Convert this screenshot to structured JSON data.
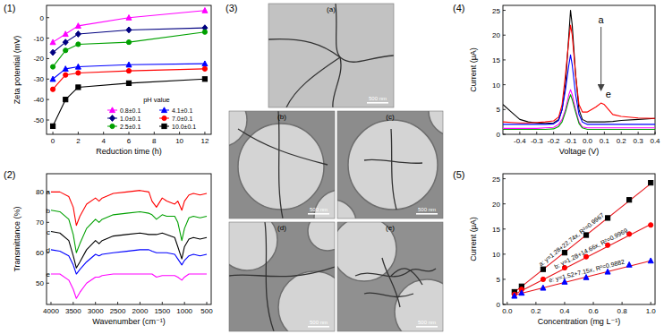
{
  "chart_data": [
    {
      "type": "line",
      "title": "(1)",
      "x_label": "Reduction time (h)",
      "y_label": "Zeta potential (mV)",
      "x": [
        0,
        1,
        2,
        6,
        12
      ],
      "xlim": [
        -0.5,
        12.5
      ],
      "xticks": [
        0,
        2,
        4,
        6,
        8,
        10,
        12
      ],
      "ylim": [
        -57,
        6
      ],
      "yticks": [
        -50,
        -40,
        -30,
        -20,
        -10,
        0
      ],
      "legend": "bottom-right",
      "legend_title": "pH value",
      "series": [
        {
          "name": "0.8±0.1",
          "color": "#ff00ff",
          "marker": "triangle",
          "values": [
            -12,
            -8,
            -4,
            0,
            3.5
          ]
        },
        {
          "name": "1.0±0.1",
          "color": "#000080",
          "marker": "diamond",
          "values": [
            -17,
            -12,
            -8,
            -6,
            -5
          ]
        },
        {
          "name": "2.5±0.1",
          "color": "#00a000",
          "marker": "circle",
          "values": [
            -24,
            -16,
            -13,
            -12,
            -7
          ]
        },
        {
          "name": "4.1±0.1",
          "color": "#0000ff",
          "marker": "triangle",
          "values": [
            -30,
            -25,
            -24,
            -23,
            -22.5
          ]
        },
        {
          "name": "7.0±0.1",
          "color": "#ff0000",
          "marker": "circle",
          "values": [
            -35,
            -28,
            -27,
            -26,
            -25
          ]
        },
        {
          "name": "10.0±0.1",
          "color": "#000000",
          "marker": "square",
          "values": [
            -53,
            -40,
            -34,
            -32,
            -30
          ]
        }
      ]
    },
    {
      "type": "line",
      "title": "(2)",
      "x_label": "Wavenumber (cm⁻¹)",
      "y_label": "Transmittance (%)",
      "x": [
        4000,
        3800,
        3600,
        3500,
        3430,
        3350,
        3200,
        3000,
        2920,
        2850,
        2600,
        2300,
        2000,
        1800,
        1730,
        1630,
        1500,
        1400,
        1220,
        1150,
        1060,
        1000,
        900,
        800,
        650,
        500
      ],
      "xlim": [
        4100,
        400
      ],
      "xticks": [
        4000,
        3500,
        3000,
        2500,
        2000,
        1500,
        1000,
        500
      ],
      "ylim": [
        43,
        86
      ],
      "yticks": [
        50,
        60,
        70,
        80
      ],
      "series": [
        {
          "name": "a",
          "color": "#ff0000",
          "values": [
            80,
            80,
            78.5,
            75,
            69,
            72,
            76,
            78,
            77,
            78,
            79.5,
            80,
            80.5,
            80,
            77,
            75,
            78,
            77,
            76,
            77,
            74,
            77,
            79,
            79.5,
            79,
            79.5
          ]
        },
        {
          "name": "b",
          "color": "#00a000",
          "values": [
            74,
            73.5,
            71,
            66,
            60,
            63,
            68,
            71,
            70,
            71,
            72.5,
            73,
            73.5,
            73,
            72.5,
            71,
            72.5,
            72,
            72,
            70,
            64,
            68,
            71.5,
            72,
            71.5,
            72
          ]
        },
        {
          "name": "c",
          "color": "#000000",
          "values": [
            67,
            66.5,
            64,
            59,
            55,
            57,
            61,
            64,
            63,
            64,
            65.5,
            66,
            66.5,
            66,
            66,
            66,
            66.5,
            66,
            65,
            62,
            58,
            62,
            64.5,
            65,
            64.5,
            65
          ]
        },
        {
          "name": "d",
          "color": "#0000ff",
          "values": [
            61,
            60.5,
            59,
            56,
            53,
            54.5,
            57,
            59.5,
            59,
            59.5,
            60,
            60.5,
            61,
            61,
            60.5,
            60,
            60,
            60,
            59.5,
            58,
            56,
            57.5,
            59,
            59.5,
            59,
            59.5
          ]
        },
        {
          "name": "e",
          "color": "#ff00ff",
          "values": [
            53,
            53,
            51,
            48,
            45,
            47,
            50,
            52,
            52,
            52.5,
            53,
            53,
            53,
            53,
            53,
            52,
            52.5,
            52.5,
            52.5,
            52,
            51,
            52,
            53,
            53,
            53,
            53
          ]
        }
      ]
    },
    {
      "type": "line",
      "title": "(4)",
      "x_label": "Voltage (V)",
      "y_label": "Current (μA)",
      "x": [
        -0.5,
        -0.45,
        -0.4,
        -0.35,
        -0.3,
        -0.25,
        -0.2,
        -0.17,
        -0.15,
        -0.13,
        -0.11,
        -0.1,
        -0.09,
        -0.07,
        -0.05,
        -0.03,
        0,
        0.05,
        0.08,
        0.1,
        0.15,
        0.2,
        0.3,
        0.4
      ],
      "xlim": [
        -0.5,
        0.4
      ],
      "xticks": [
        -0.4,
        -0.3,
        -0.2,
        -0.1,
        {
          "value": 0,
          "label": "0.0"
        },
        0.1,
        0.2,
        0.3,
        0.4
      ],
      "ylim": [
        0,
        26
      ],
      "yticks": [
        0,
        5,
        10,
        15,
        20,
        25
      ],
      "annotations": [
        "a",
        "e"
      ],
      "series": [
        {
          "color": "#000000",
          "values": [
            6,
            4.5,
            3,
            2.5,
            2.3,
            2.2,
            2.3,
            3,
            5,
            10,
            20,
            25,
            22,
            12,
            5,
            3,
            2.5,
            2.5,
            2.5,
            2.5,
            2.6,
            2.8,
            3,
            3.2
          ]
        },
        {
          "color": "#ff0000",
          "values": [
            2.5,
            2.4,
            2.3,
            2.3,
            2.4,
            2.5,
            2.7,
            3.5,
            6,
            12,
            19,
            22,
            20,
            12,
            6,
            4.5,
            4.5,
            5.5,
            6.3,
            6,
            4,
            3.6,
            3.3,
            3.2
          ]
        },
        {
          "color": "#0000ff",
          "values": [
            2,
            2,
            2,
            2,
            2,
            2,
            2.1,
            2.8,
            5,
            9,
            14,
            16,
            14,
            8,
            4,
            2.5,
            2,
            2,
            2,
            2,
            2,
            2,
            2,
            2
          ]
        },
        {
          "color": "#ff00ff",
          "values": [
            1.2,
            1.2,
            1.2,
            1.2,
            1.2,
            1.3,
            1.4,
            2,
            3,
            5,
            8,
            9,
            8,
            5,
            2.5,
            1.5,
            1.3,
            1.3,
            1.3,
            1.3,
            1.3,
            1.3,
            1.3,
            1.3
          ]
        },
        {
          "color": "#00a000",
          "values": [
            1,
            1,
            1,
            1,
            1,
            1,
            1.1,
            1.6,
            2.5,
            4.5,
            7,
            8,
            7,
            4.5,
            2.2,
            1.3,
            1,
            1,
            1,
            1,
            1,
            1,
            1,
            1
          ]
        }
      ]
    },
    {
      "type": "scatter",
      "title": "(5)",
      "x_label": "Concentration (mg L⁻¹)",
      "y_label": "Current (μA)",
      "x": [
        0.05,
        0.1,
        0.25,
        0.4,
        0.55,
        0.7,
        0.85,
        1.0
      ],
      "xlim": [
        -0.03,
        1.03
      ],
      "xticks": [
        {
          "value": 0,
          "label": "0.0"
        },
        0.2,
        0.4,
        0.6,
        0.8,
        {
          "value": 1,
          "label": "1.0"
        }
      ],
      "ylim": [
        0,
        26
      ],
      "yticks": [
        0,
        5,
        10,
        15,
        20,
        25
      ],
      "series": [
        {
          "color": "#000000",
          "marker": "square",
          "values": [
            2.5,
            3.6,
            7,
            10.3,
            13.8,
            17.2,
            20.8,
            24.2
          ],
          "fit": {
            "intercept": 1.28,
            "slope": 22.74
          },
          "label": "a: y=1.28+22.74x, R²=0.9967"
        },
        {
          "color": "#ff0000",
          "marker": "circle",
          "values": [
            2.0,
            3.0,
            5,
            7.3,
            9.5,
            11.8,
            14,
            15.8
          ],
          "fit": {
            "intercept": 1.28,
            "slope": 14.66
          },
          "label": "b: y=1.28+14.66x, R²=0.9969"
        },
        {
          "color": "#0000ff",
          "marker": "triangle",
          "values": [
            1.7,
            2.3,
            3.3,
            4.5,
            5.4,
            6.5,
            7.9,
            8.7
          ],
          "fit": {
            "intercept": 1.52,
            "slope": 7.15
          },
          "label": "e: y=1.52+7.15x, R²=0.9882"
        }
      ]
    }
  ],
  "micrographs": {
    "title": "(3)",
    "images": [
      {
        "label": "(a)",
        "scale_bar": "500 nm"
      },
      {
        "label": "(b)",
        "scale_bar": "500 nm"
      },
      {
        "label": "(c)",
        "scale_bar": "500 nm"
      },
      {
        "label": "(d)",
        "scale_bar": "500 nm"
      },
      {
        "label": "(e)",
        "scale_bar": "500 nm"
      }
    ]
  }
}
